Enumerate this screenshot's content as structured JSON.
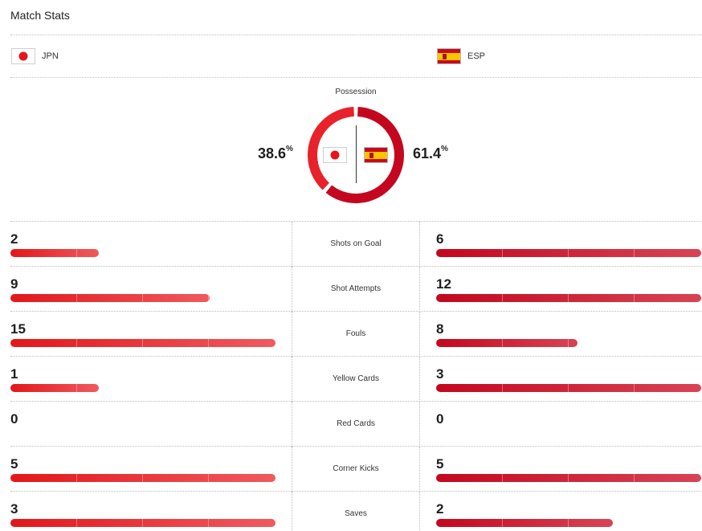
{
  "header": {
    "title": "Match Stats"
  },
  "teams": {
    "home": {
      "abbr": "JPN",
      "flag_icon": "flag-japan-icon",
      "color": "#e2171b"
    },
    "away": {
      "abbr": "ESP",
      "flag_icon": "flag-spain-icon",
      "color": "#c4071f"
    }
  },
  "possession": {
    "label": "Possession",
    "home_value": "38.6",
    "away_value": "61.4",
    "unit": "%",
    "home_fraction": 0.386,
    "away_fraction": 0.614
  },
  "stats": [
    {
      "label": "Shots on Goal",
      "home": "2",
      "away": "6"
    },
    {
      "label": "Shot Attempts",
      "home": "9",
      "away": "12"
    },
    {
      "label": "Fouls",
      "home": "15",
      "away": "8"
    },
    {
      "label": "Yellow Cards",
      "home": "1",
      "away": "3"
    },
    {
      "label": "Red Cards",
      "home": "0",
      "away": "0"
    },
    {
      "label": "Corner Kicks",
      "home": "5",
      "away": "5"
    },
    {
      "label": "Saves",
      "home": "3",
      "away": "2"
    }
  ]
}
